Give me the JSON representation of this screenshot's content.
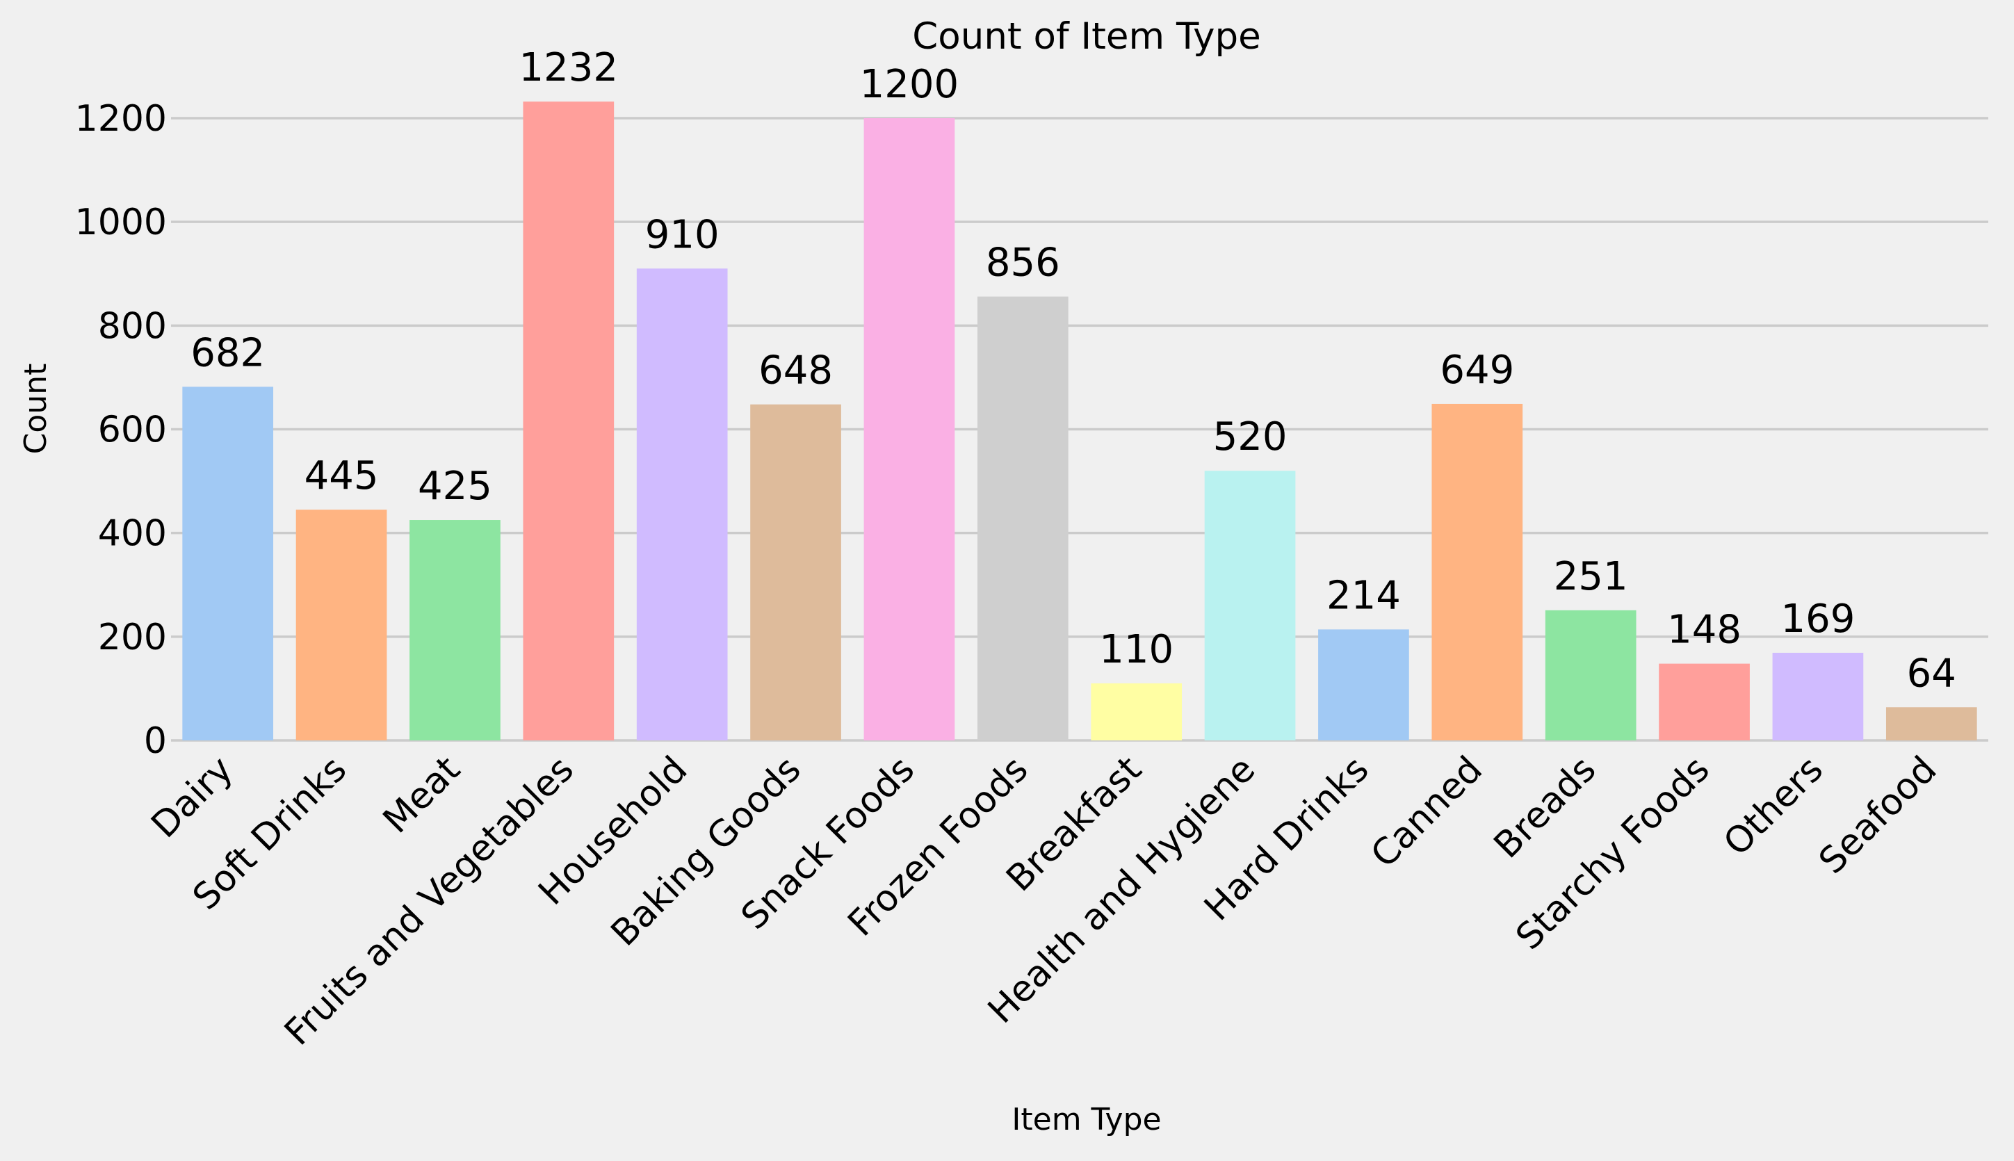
{
  "chart_data": {
    "type": "bar",
    "title": "Count of Item Type",
    "xlabel": "Item Type",
    "ylabel": "Count",
    "ylim": [
      0,
      1320
    ],
    "yticks": [
      0,
      200,
      400,
      600,
      800,
      1000,
      1200
    ],
    "grid": "horizontal",
    "background": "#f0f0f0",
    "categories": [
      "Dairy",
      "Soft Drinks",
      "Meat",
      "Fruits and Vegetables",
      "Household",
      "Baking Goods",
      "Snack Foods",
      "Frozen Foods",
      "Breakfast",
      "Health and Hygiene",
      "Hard Drinks",
      "Canned",
      "Breads",
      "Starchy Foods",
      "Others",
      "Seafood"
    ],
    "values": [
      682,
      445,
      425,
      1232,
      910,
      648,
      1200,
      856,
      110,
      520,
      214,
      649,
      251,
      148,
      169,
      64
    ],
    "colors": [
      "#a1c9f4",
      "#ffb482",
      "#8de5a1",
      "#ff9f9b",
      "#d0bbff",
      "#debb9b",
      "#fab0e4",
      "#cfcfcf",
      "#fffea3",
      "#b9f2f0",
      "#a1c9f4",
      "#ffb482",
      "#8de5a1",
      "#ff9f9b",
      "#d0bbff",
      "#debb9b"
    ]
  }
}
